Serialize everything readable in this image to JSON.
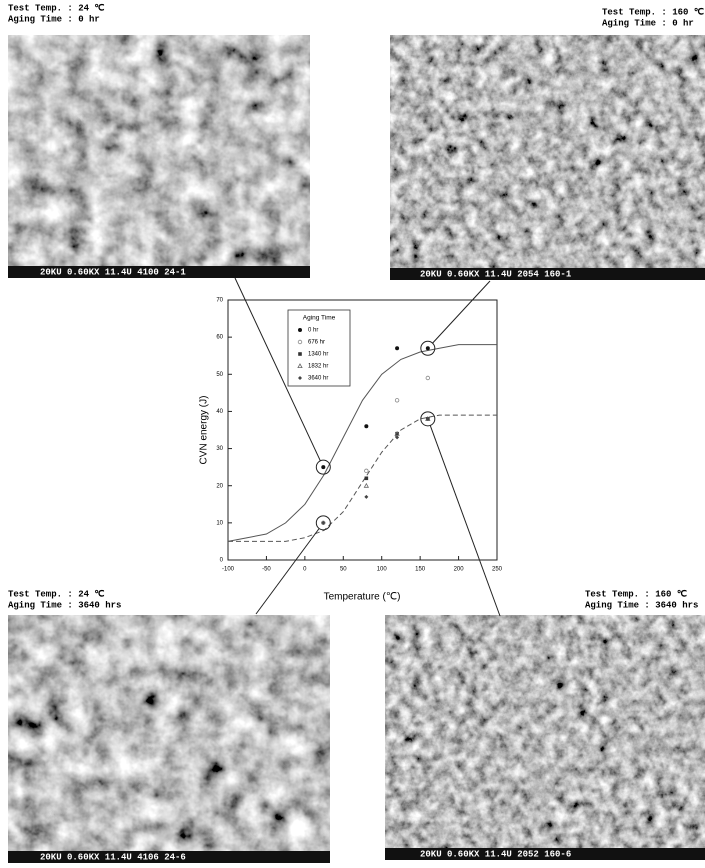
{
  "panels": [
    {
      "temp": "Test Temp. : 24 ℃",
      "aging": "Aging Time : 0 hr",
      "bar": "20KU  0.60KX  11.4U  4100  24-1"
    },
    {
      "temp": "Test Temp. : 160 ℃",
      "aging": "Aging Time : 0 hr",
      "bar": "20KU  0.60KX  11.4U  2054  160-1"
    },
    {
      "temp": "Test Temp. : 24 ℃",
      "aging": "Aging Time : 3640 hrs",
      "bar": "20KU  0.60KX  11.4U  4106  24-6"
    },
    {
      "temp": "Test Temp. : 160 ℃",
      "aging": "Aging Time : 3640 hrs",
      "bar": "20KU  0.60KX  11.4U  2052  160-6"
    }
  ],
  "chart_data": {
    "type": "scatter",
    "xlabel": "Temperature (℃)",
    "ylabel": "CVN energy (J)",
    "legend_title": "Aging Time",
    "xlim": [
      -100,
      250
    ],
    "xticks": [
      -100,
      -50,
      0,
      50,
      100,
      150,
      200,
      250
    ],
    "ylim": [
      0,
      70
    ],
    "yticks": [
      0,
      10,
      20,
      30,
      40,
      50,
      60,
      70
    ],
    "series": [
      {
        "name": "0 hr",
        "color": "#111111",
        "x": [
          24,
          80,
          120,
          160
        ],
        "values": [
          25,
          36,
          57,
          57
        ]
      },
      {
        "name": "676 hr",
        "color": "#888888",
        "x": [
          24,
          80,
          120,
          160
        ],
        "values": [
          10,
          24,
          43,
          49
        ]
      },
      {
        "name": "1340 hr",
        "color": "#333333",
        "x": [
          80,
          120,
          160
        ],
        "values": [
          22,
          34,
          38
        ]
      },
      {
        "name": "1832 hr",
        "color": "#666666",
        "x": [
          80,
          120,
          160
        ],
        "values": [
          20,
          34,
          38
        ]
      },
      {
        "name": "3640 hr",
        "color": "#444444",
        "x": [
          24,
          80,
          120,
          160
        ],
        "values": [
          10,
          17,
          33,
          38
        ]
      }
    ],
    "curves": [
      {
        "x": [
          -100,
          -75,
          -50,
          -25,
          0,
          25,
          50,
          75,
          100,
          125,
          150,
          175,
          200,
          225,
          250
        ],
        "values": [
          5,
          6,
          7,
          10,
          15,
          23,
          33,
          43,
          50,
          54,
          56,
          57,
          58,
          58,
          58
        ]
      },
      {
        "x": [
          -100,
          -75,
          -50,
          -25,
          0,
          25,
          50,
          75,
          100,
          125,
          150,
          175,
          200,
          225,
          250
        ],
        "values": [
          5,
          5,
          5,
          5,
          6,
          8,
          13,
          21,
          29,
          35,
          38,
          39,
          39,
          39,
          39
        ]
      }
    ]
  }
}
